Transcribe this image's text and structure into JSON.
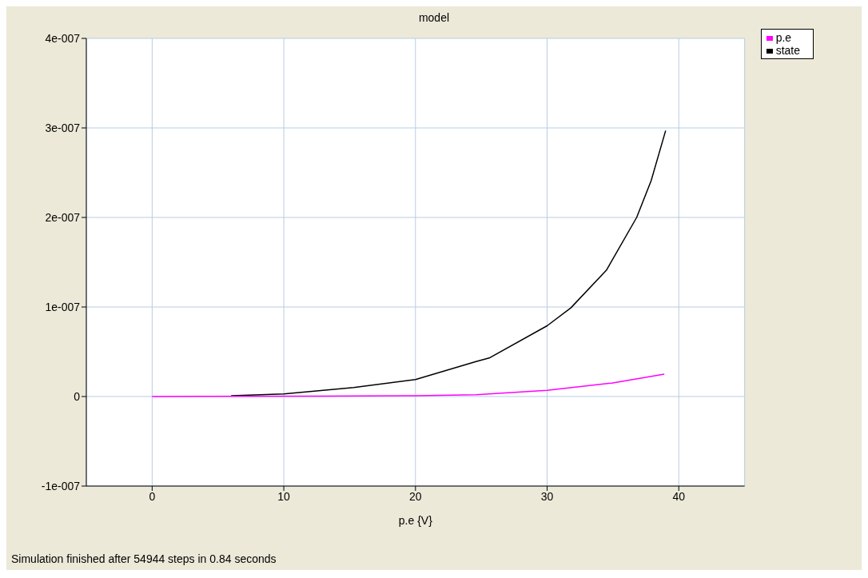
{
  "chart_data": {
    "type": "line",
    "title": "model",
    "xlabel": "p.e {V}",
    "annotations": [
      "Simulation finished after 54944 steps in 0.84 seconds"
    ],
    "xlim": [
      -5,
      45
    ],
    "xticks": [
      0,
      10,
      20,
      30,
      40
    ],
    "ylim": [
      -1e-07,
      4e-07
    ],
    "yticks": [
      {
        "value": -1e-07,
        "label": "-1e-007"
      },
      {
        "value": 0,
        "label": "0"
      },
      {
        "value": 1e-07,
        "label": "1e-007"
      },
      {
        "value": 2e-07,
        "label": "2e-007"
      },
      {
        "value": 3e-07,
        "label": "3e-007"
      },
      {
        "value": 4e-07,
        "label": "4e-007"
      }
    ],
    "grid": true,
    "legend": "top right",
    "series": [
      {
        "name": "state",
        "color": "#000000",
        "x": [
          6,
          10,
          15.3,
          20,
          24.6,
          25.6,
          30,
          31.8,
          34.5,
          36.8,
          37.9,
          39
        ],
        "values": [
          1e-09,
          3e-09,
          1e-08,
          1.9e-08,
          3.9e-08,
          4.3e-08,
          7.9e-08,
          9.9e-08,
          1.41e-07,
          2e-07,
          2.41e-07,
          2.97e-07
        ]
      },
      {
        "name": "p.e",
        "color": "#ff00ff",
        "x": [
          0,
          13,
          20,
          24.6,
          30,
          34.9,
          38.9
        ],
        "values": [
          0,
          5e-10,
          1e-09,
          2e-09,
          7e-09,
          1.5e-08,
          2.5e-08
        ]
      }
    ]
  }
}
